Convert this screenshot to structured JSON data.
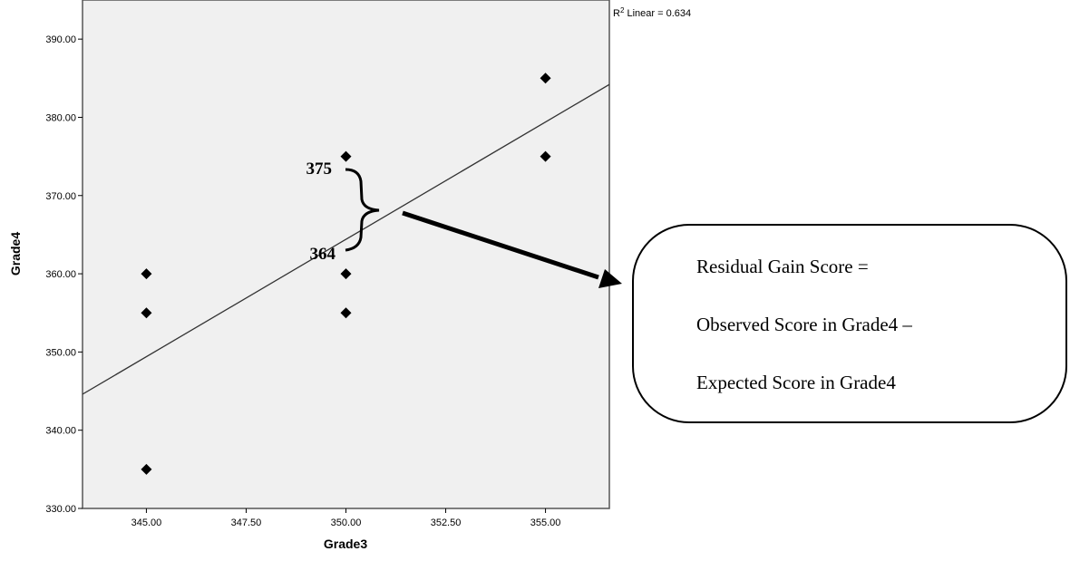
{
  "chart_data": {
    "type": "scatter",
    "xlabel": "Grade3",
    "ylabel": "Grade4",
    "xlim": [
      343.4,
      356.6
    ],
    "ylim": [
      330,
      395
    ],
    "x_ticks": [
      345,
      347.5,
      350,
      352.5,
      355
    ],
    "x_tick_labels": [
      "345.00",
      "347.50",
      "350.00",
      "352.50",
      "355.00"
    ],
    "y_ticks": [
      330,
      340,
      350,
      360,
      370,
      380,
      390
    ],
    "y_tick_labels": [
      "330.00",
      "340.00",
      "350.00",
      "360.00",
      "370.00",
      "380.00",
      "390.00"
    ],
    "points": [
      {
        "x": 345,
        "y": 360
      },
      {
        "x": 345,
        "y": 355
      },
      {
        "x": 345,
        "y": 335
      },
      {
        "x": 350,
        "y": 375
      },
      {
        "x": 350,
        "y": 360
      },
      {
        "x": 350,
        "y": 355
      },
      {
        "x": 355,
        "y": 385
      },
      {
        "x": 355,
        "y": 375
      }
    ],
    "fit_line": {
      "x": [
        343.4,
        356.6
      ],
      "y": [
        344.6,
        384.2
      ]
    },
    "r2_label": "R² Linear = 0.634",
    "grid": false,
    "plot_background": "#f0f0f0",
    "point_color": "#000000",
    "annotations": {
      "observed_value": {
        "text": "375",
        "y": 375
      },
      "expected_value": {
        "text": "364",
        "y": 364
      }
    },
    "callout": {
      "lines": [
        "Residual Gain Score =",
        "Observed Score in Grade4 –",
        "Expected Score in Grade4"
      ]
    }
  }
}
